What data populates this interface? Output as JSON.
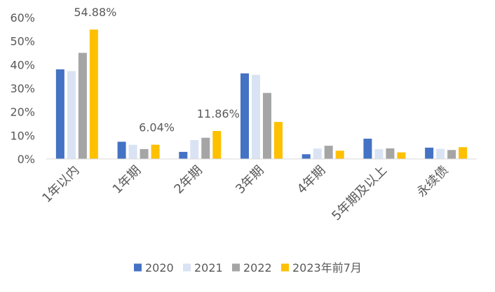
{
  "chart_data": {
    "type": "bar",
    "categories": [
      "1年以内",
      "1年期",
      "2年期",
      "3年期",
      "4年期",
      "5年期及以上",
      "永续债"
    ],
    "series": [
      {
        "name": "2020",
        "color": "#4472C4",
        "values": [
          38.0,
          7.3,
          3.0,
          36.3,
          2.0,
          8.6,
          4.8
        ]
      },
      {
        "name": "2021",
        "color": "#DAE3F3",
        "values": [
          37.3,
          6.0,
          8.0,
          35.7,
          4.4,
          4.2,
          4.3
        ]
      },
      {
        "name": "2022",
        "color": "#A5A5A5",
        "values": [
          45.0,
          4.2,
          9.0,
          28.0,
          5.6,
          4.5,
          3.8
        ]
      },
      {
        "name": "2023年前7月",
        "color": "#FFC000",
        "values": [
          54.88,
          6.04,
          11.86,
          15.7,
          3.5,
          2.8,
          5.0
        ]
      }
    ],
    "ylim": [
      0,
      60
    ],
    "yticks": [
      "0%",
      "10%",
      "20%",
      "30%",
      "40%",
      "50%",
      "60%"
    ],
    "data_labels": [
      {
        "series": 3,
        "category": 0,
        "text": "54.88%"
      },
      {
        "series": 3,
        "category": 1,
        "text": "6.04%"
      },
      {
        "series": 3,
        "category": 2,
        "text": "11.86%"
      }
    ],
    "title": "",
    "xlabel": "",
    "ylabel": "",
    "grid": false,
    "legend_position": "bottom",
    "axis_color": "#D9D9D9"
  }
}
